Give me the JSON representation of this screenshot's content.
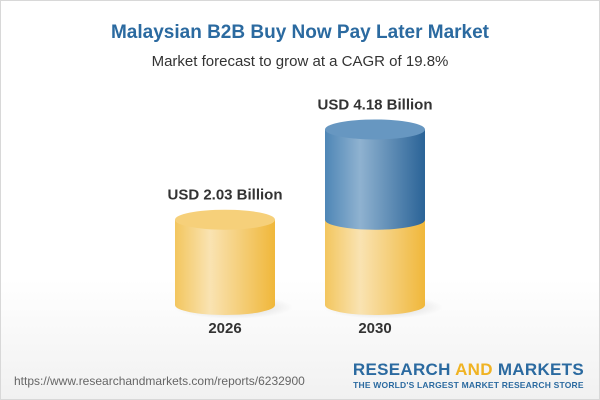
{
  "title": "Malaysian B2B Buy Now Pay Later Market",
  "subtitle": "Market forecast to grow at a CAGR of 19.8%",
  "chart_data": {
    "type": "bar",
    "style": "3d-cylinder",
    "categories": [
      "2026",
      "2030"
    ],
    "values": [
      2.03,
      4.18
    ],
    "data_labels": [
      "USD 2.03 Billion",
      "USD 4.18 Billion"
    ],
    "unit": "USD Billion",
    "colors": {
      "base": "#f2c14e",
      "growth": "#3d7bb0"
    },
    "grid": false
  },
  "footer": {
    "url": "https://www.researchandmarkets.com/reports/6232900",
    "logo_part1": "RESEARCH ",
    "logo_part2": "AND",
    "logo_part3": " MARKETS",
    "tagline": "THE WORLD'S LARGEST MARKET RESEARCH STORE"
  }
}
